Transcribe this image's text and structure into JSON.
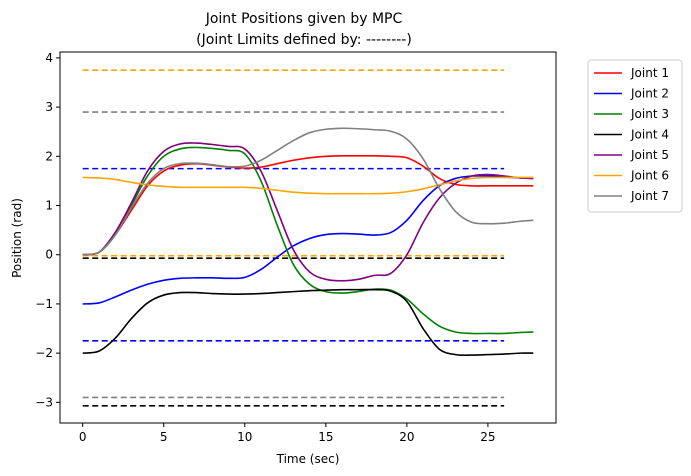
{
  "chart_data": {
    "type": "line",
    "title": "Joint Positions given by MPC",
    "subtitle": "(Joint Limits defined by: --------)",
    "xlabel": "Time (sec)",
    "ylabel": "Position (rad)",
    "xlim": [
      -1.4,
      29.2
    ],
    "ylim": [
      -3.42,
      4.12
    ],
    "xticks": [
      0,
      5,
      10,
      15,
      20,
      25
    ],
    "yticks": [
      -3,
      -2,
      -1,
      0,
      1,
      2,
      3,
      4
    ],
    "grid": false,
    "legend_position": "outside-top-right",
    "series": [
      {
        "name": "Joint 1",
        "color": "#ff0000",
        "x": [
          0,
          1,
          2,
          3,
          4,
          5,
          6,
          7,
          8,
          9,
          10,
          11,
          12,
          13,
          14,
          15,
          16,
          17,
          18,
          19,
          20,
          21,
          22,
          23,
          24,
          25,
          26,
          27,
          27.8
        ],
        "y": [
          0.0,
          0.05,
          0.4,
          0.9,
          1.4,
          1.7,
          1.82,
          1.85,
          1.82,
          1.78,
          1.76,
          1.78,
          1.85,
          1.92,
          1.97,
          2.0,
          2.01,
          2.01,
          2.01,
          2.0,
          1.97,
          1.8,
          1.55,
          1.43,
          1.4,
          1.4,
          1.4,
          1.4,
          1.4
        ]
      },
      {
        "name": "Joint 2",
        "color": "#0000ff",
        "x": [
          0,
          1,
          2,
          3,
          4,
          5,
          6,
          7,
          8,
          9,
          10,
          11,
          12,
          13,
          14,
          15,
          16,
          17,
          18,
          19,
          20,
          21,
          22,
          23,
          24,
          25,
          26,
          27,
          27.8
        ],
        "y": [
          -1.0,
          -0.98,
          -0.86,
          -0.72,
          -0.6,
          -0.52,
          -0.48,
          -0.47,
          -0.47,
          -0.48,
          -0.46,
          -0.3,
          -0.05,
          0.18,
          0.33,
          0.41,
          0.43,
          0.42,
          0.4,
          0.45,
          0.7,
          1.1,
          1.4,
          1.55,
          1.6,
          1.6,
          1.58,
          1.56,
          1.55
        ]
      },
      {
        "name": "Joint 3",
        "color": "#008000",
        "x": [
          0,
          1,
          2,
          3,
          4,
          5,
          6,
          7,
          8,
          9,
          10,
          11,
          12,
          13,
          14,
          15,
          16,
          17,
          18,
          19,
          20,
          21,
          22,
          23,
          24,
          25,
          26,
          27,
          27.8
        ],
        "y": [
          0.0,
          0.05,
          0.4,
          1.0,
          1.6,
          2.0,
          2.15,
          2.18,
          2.16,
          2.12,
          2.05,
          1.5,
          0.6,
          -0.2,
          -0.6,
          -0.75,
          -0.78,
          -0.75,
          -0.7,
          -0.72,
          -0.9,
          -1.2,
          -1.45,
          -1.57,
          -1.6,
          -1.6,
          -1.6,
          -1.58,
          -1.57
        ]
      },
      {
        "name": "Joint 4",
        "color": "#000000",
        "x": [
          0,
          1,
          2,
          3,
          4,
          5,
          6,
          7,
          8,
          9,
          10,
          11,
          12,
          13,
          14,
          15,
          16,
          17,
          18,
          19,
          20,
          21,
          22,
          23,
          24,
          25,
          26,
          27,
          27.8
        ],
        "y": [
          -2.0,
          -1.96,
          -1.7,
          -1.3,
          -0.98,
          -0.82,
          -0.77,
          -0.77,
          -0.79,
          -0.8,
          -0.8,
          -0.79,
          -0.77,
          -0.75,
          -0.73,
          -0.72,
          -0.71,
          -0.71,
          -0.71,
          -0.74,
          -0.95,
          -1.5,
          -1.92,
          -2.03,
          -2.04,
          -2.03,
          -2.02,
          -2.0,
          -2.0
        ]
      },
      {
        "name": "Joint 5",
        "color": "#800080",
        "x": [
          0,
          1,
          2,
          3,
          4,
          5,
          6,
          7,
          8,
          9,
          10,
          11,
          12,
          13,
          14,
          15,
          16,
          17,
          18,
          19,
          20,
          21,
          22,
          23,
          24,
          25,
          26,
          27,
          27.8
        ],
        "y": [
          0.0,
          0.05,
          0.45,
          1.05,
          1.7,
          2.1,
          2.25,
          2.27,
          2.24,
          2.2,
          2.15,
          1.7,
          0.9,
          0.1,
          -0.35,
          -0.5,
          -0.53,
          -0.5,
          -0.42,
          -0.38,
          0.0,
          0.65,
          1.15,
          1.45,
          1.6,
          1.63,
          1.6,
          1.56,
          1.55
        ]
      },
      {
        "name": "Joint 6",
        "color": "#ffa500",
        "x": [
          0,
          1,
          2,
          3,
          4,
          5,
          6,
          7,
          8,
          9,
          10,
          11,
          12,
          13,
          14,
          15,
          16,
          17,
          18,
          19,
          20,
          21,
          22,
          23,
          24,
          25,
          26,
          27,
          27.8
        ],
        "y": [
          1.57,
          1.56,
          1.53,
          1.47,
          1.42,
          1.39,
          1.37,
          1.37,
          1.37,
          1.37,
          1.37,
          1.35,
          1.31,
          1.27,
          1.25,
          1.24,
          1.24,
          1.24,
          1.24,
          1.25,
          1.28,
          1.34,
          1.42,
          1.5,
          1.55,
          1.57,
          1.57,
          1.57,
          1.57
        ]
      },
      {
        "name": "Joint 7",
        "color": "#808080",
        "x": [
          0,
          1,
          2,
          3,
          4,
          5,
          6,
          7,
          8,
          9,
          10,
          11,
          12,
          13,
          14,
          15,
          16,
          17,
          18,
          19,
          20,
          21,
          22,
          23,
          24,
          25,
          26,
          27,
          27.8
        ],
        "y": [
          0.0,
          0.05,
          0.4,
          0.95,
          1.45,
          1.75,
          1.85,
          1.86,
          1.83,
          1.79,
          1.8,
          1.92,
          2.12,
          2.32,
          2.48,
          2.55,
          2.57,
          2.56,
          2.54,
          2.51,
          2.35,
          1.95,
          1.35,
          0.88,
          0.66,
          0.63,
          0.64,
          0.68,
          0.7
        ]
      }
    ],
    "limit_lines": [
      {
        "color": "#ffa500",
        "y": 3.75
      },
      {
        "color": "#808080",
        "y": 2.9
      },
      {
        "color": "#0000ff",
        "y": 1.75
      },
      {
        "color": "#ffa500",
        "y": -0.02
      },
      {
        "color": "#000000",
        "y": -0.07
      },
      {
        "color": "#0000ff",
        "y": -1.75
      },
      {
        "color": "#808080",
        "y": -2.9
      },
      {
        "color": "#000000",
        "y": -3.07
      }
    ],
    "limit_x_range": [
      0,
      26
    ]
  }
}
